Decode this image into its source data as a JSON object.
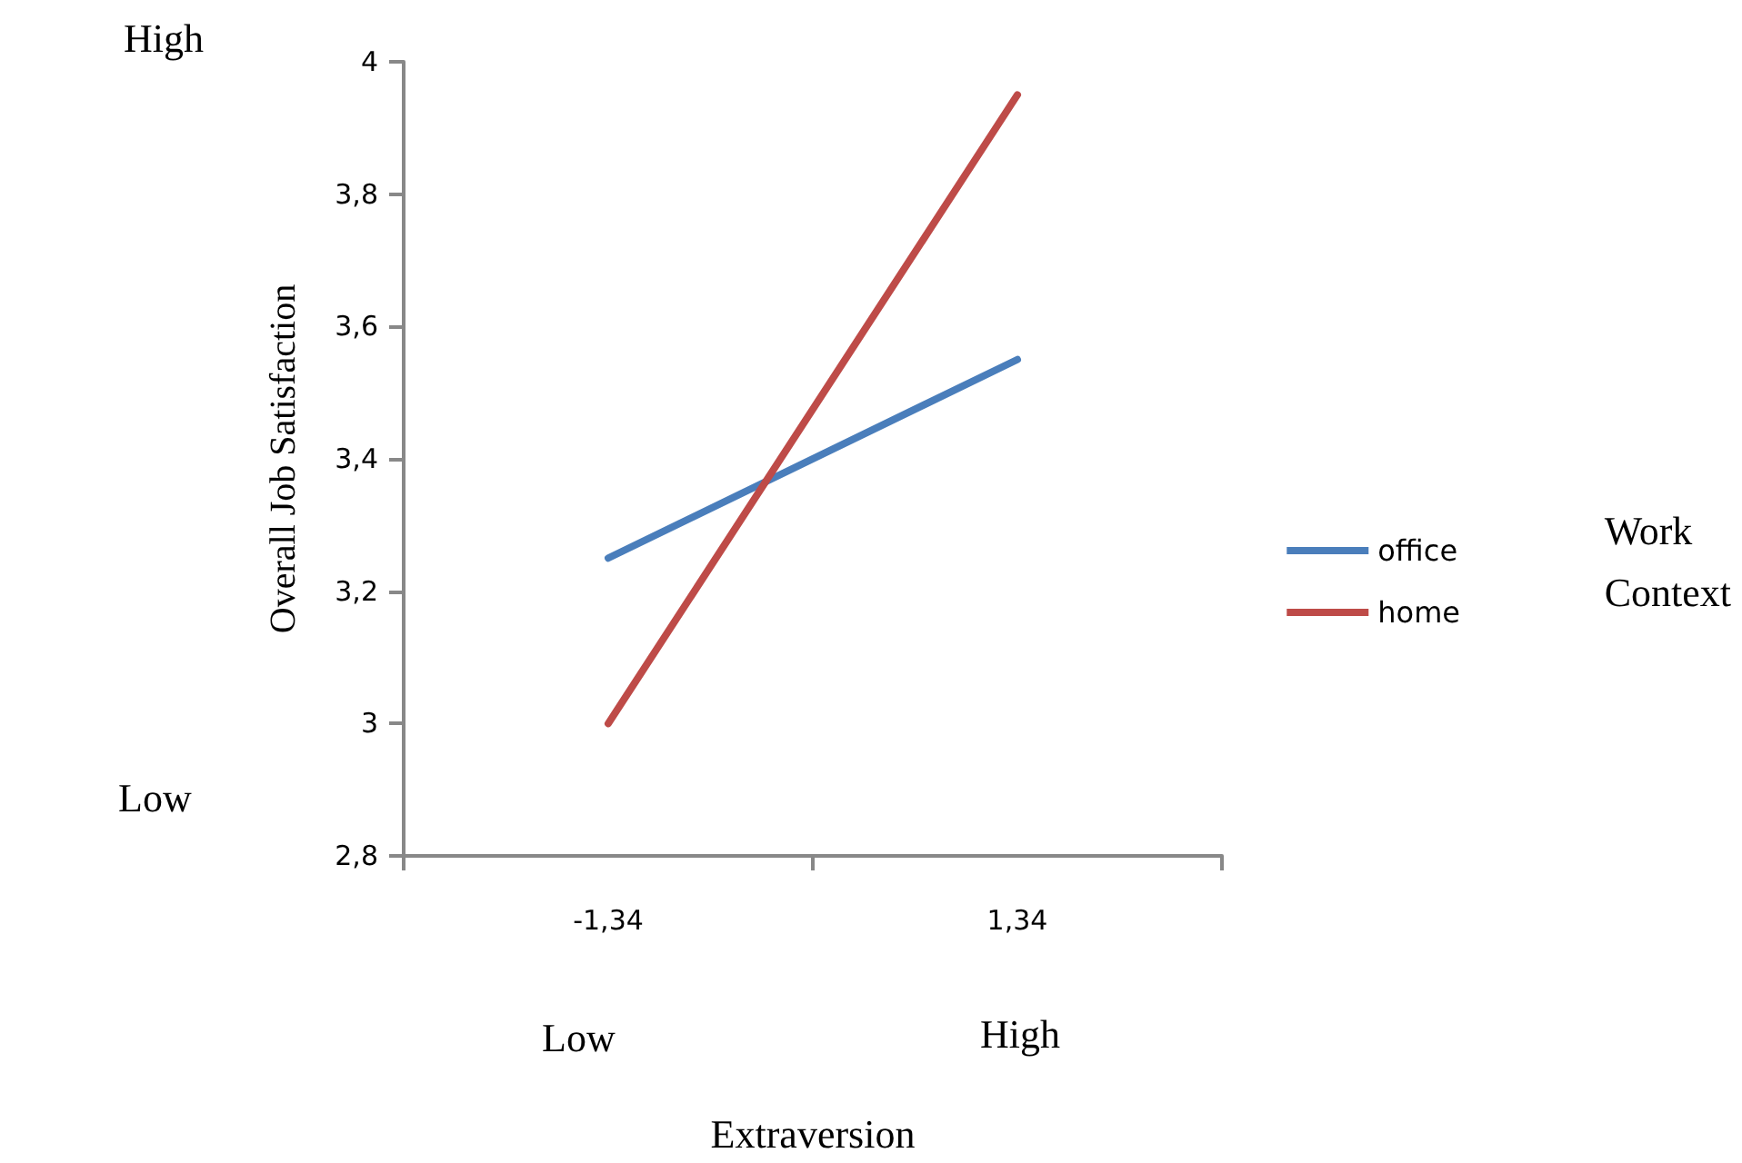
{
  "chart_data": {
    "type": "line",
    "xlabel": "Extraversion",
    "ylabel": "Overall Job Satisfaction",
    "legend_title": "Work Context",
    "categories": [
      "-1,34",
      "1,34"
    ],
    "series": [
      {
        "name": "office",
        "color": "#4a7ebb",
        "values": [
          3.25,
          3.55
        ]
      },
      {
        "name": "home",
        "color": "#be4b48",
        "values": [
          3.0,
          3.95
        ]
      }
    ],
    "ylim": [
      2.8,
      4
    ],
    "yticks": [
      {
        "value": 2.8,
        "label": "2,8"
      },
      {
        "value": 3,
        "label": "3"
      },
      {
        "value": 3.2,
        "label": "3,2"
      },
      {
        "value": 3.4,
        "label": "3,4"
      },
      {
        "value": 3.6,
        "label": "3,6"
      },
      {
        "value": 3.8,
        "label": "3,8"
      },
      {
        "value": 4,
        "label": "4"
      }
    ],
    "annotations": [
      "High",
      "Low",
      "Low",
      "High"
    ],
    "grid": false,
    "legend": "right",
    "marker": "none",
    "line_style": "solid"
  }
}
